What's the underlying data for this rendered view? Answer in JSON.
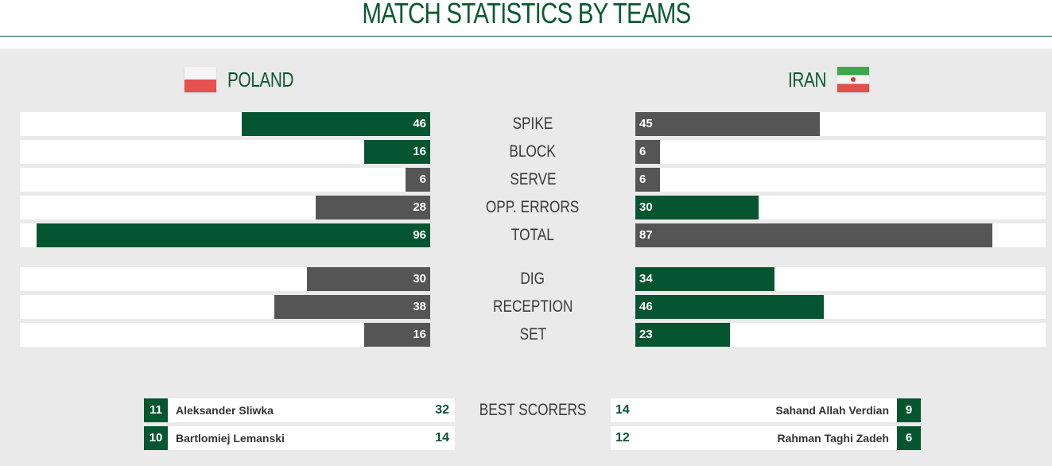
{
  "header": {
    "title": "MATCH STATISTICS BY TEAMS"
  },
  "teams": {
    "home": {
      "name": "POLAND",
      "flag_icon": "poland-flag-icon"
    },
    "away": {
      "name": "IRAN",
      "flag_icon": "iran-flag-icon"
    }
  },
  "colors": {
    "leader": "#055530",
    "trailer": "#555555",
    "accent": "#0b5a30",
    "panel": "#ebeaea"
  },
  "stats": [
    {
      "label": "SPIKE",
      "home": "46",
      "away": "45",
      "leader": "home"
    },
    {
      "label": "BLOCK",
      "home": "16",
      "away": "6",
      "leader": "home"
    },
    {
      "label": "SERVE",
      "home": "6",
      "away": "6",
      "leader": "none"
    },
    {
      "label": "OPP. ERRORS",
      "home": "28",
      "away": "30",
      "leader": "away"
    },
    {
      "label": "TOTAL",
      "home": "96",
      "away": "87",
      "leader": "home"
    },
    {
      "label": "DIG",
      "home": "30",
      "away": "34",
      "leader": "away"
    },
    {
      "label": "RECEPTION",
      "home": "38",
      "away": "46",
      "leader": "away"
    },
    {
      "label": "SET",
      "home": "16",
      "away": "23",
      "leader": "away"
    }
  ],
  "best_scorers": {
    "label": "BEST SCORERS",
    "home": [
      {
        "number": "11",
        "name": "Aleksander Sliwka",
        "points": "32"
      },
      {
        "number": "10",
        "name": "Bartlomiej Lemanski",
        "points": "14"
      }
    ],
    "away": [
      {
        "number": "9",
        "name": "Sahand Allah Verdian",
        "points": "14"
      },
      {
        "number": "6",
        "name": "Rahman Taghi Zadeh",
        "points": "12"
      }
    ]
  }
}
